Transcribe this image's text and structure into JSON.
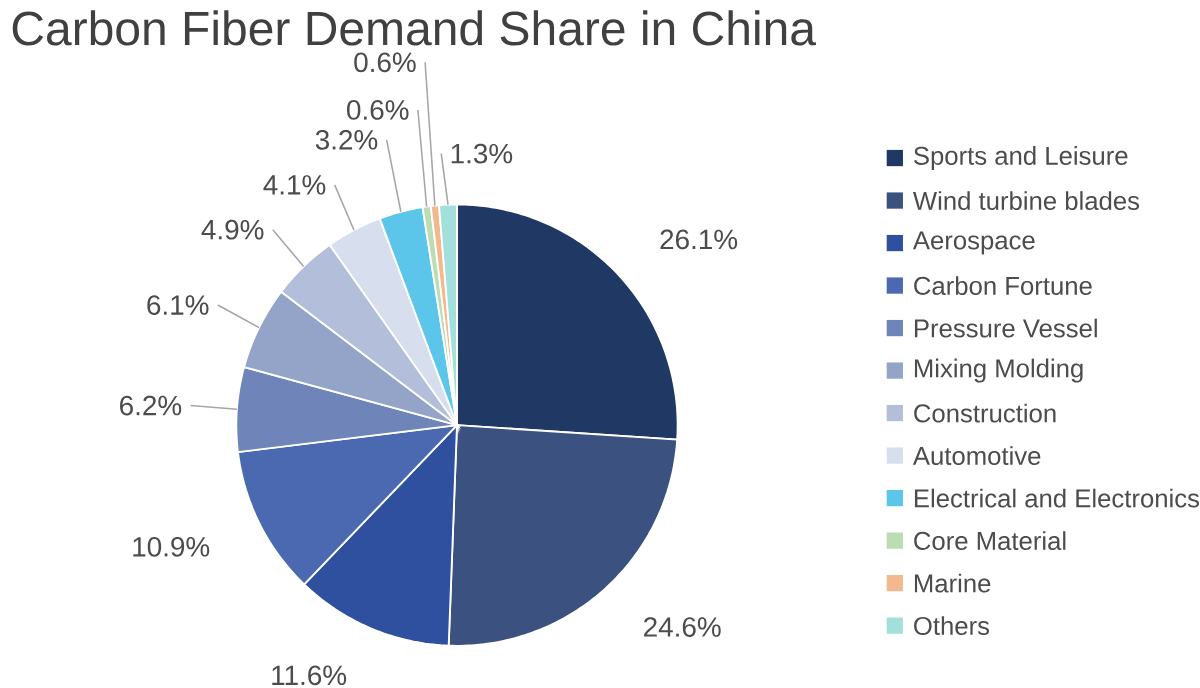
{
  "chart_data": {
    "type": "pie",
    "title": "Carbon Fiber Demand Share in China",
    "categories": [
      "Sports and Leisure",
      "Wind turbine blades",
      "Aerospace",
      "Carbon Fortune",
      "Pressure Vessel",
      "Mixing Molding",
      "Construction",
      "Automotive",
      "Electrical and Electronics",
      "Core Material",
      "Marine",
      "Others"
    ],
    "values": [
      26.1,
      24.6,
      11.6,
      10.9,
      6.2,
      6.1,
      4.9,
      4.1,
      3.2,
      0.6,
      0.6,
      1.3
    ],
    "value_labels": [
      "26.1%",
      "24.6%",
      "11.6%",
      "10.9%",
      "6.2%",
      "6.1%",
      "4.9%",
      "4.1%",
      "3.2%",
      "0.6%",
      "0.6%",
      "1.3%"
    ],
    "colors": [
      "#203864",
      "#3b5180",
      "#2f4f9f",
      "#4a69b0",
      "#6f84b8",
      "#94a4c8",
      "#b3bedb",
      "#d7deee",
      "#5bc5ea",
      "#bcdcb4",
      "#f2b88e",
      "#a3e0db"
    ],
    "legend": "right"
  }
}
